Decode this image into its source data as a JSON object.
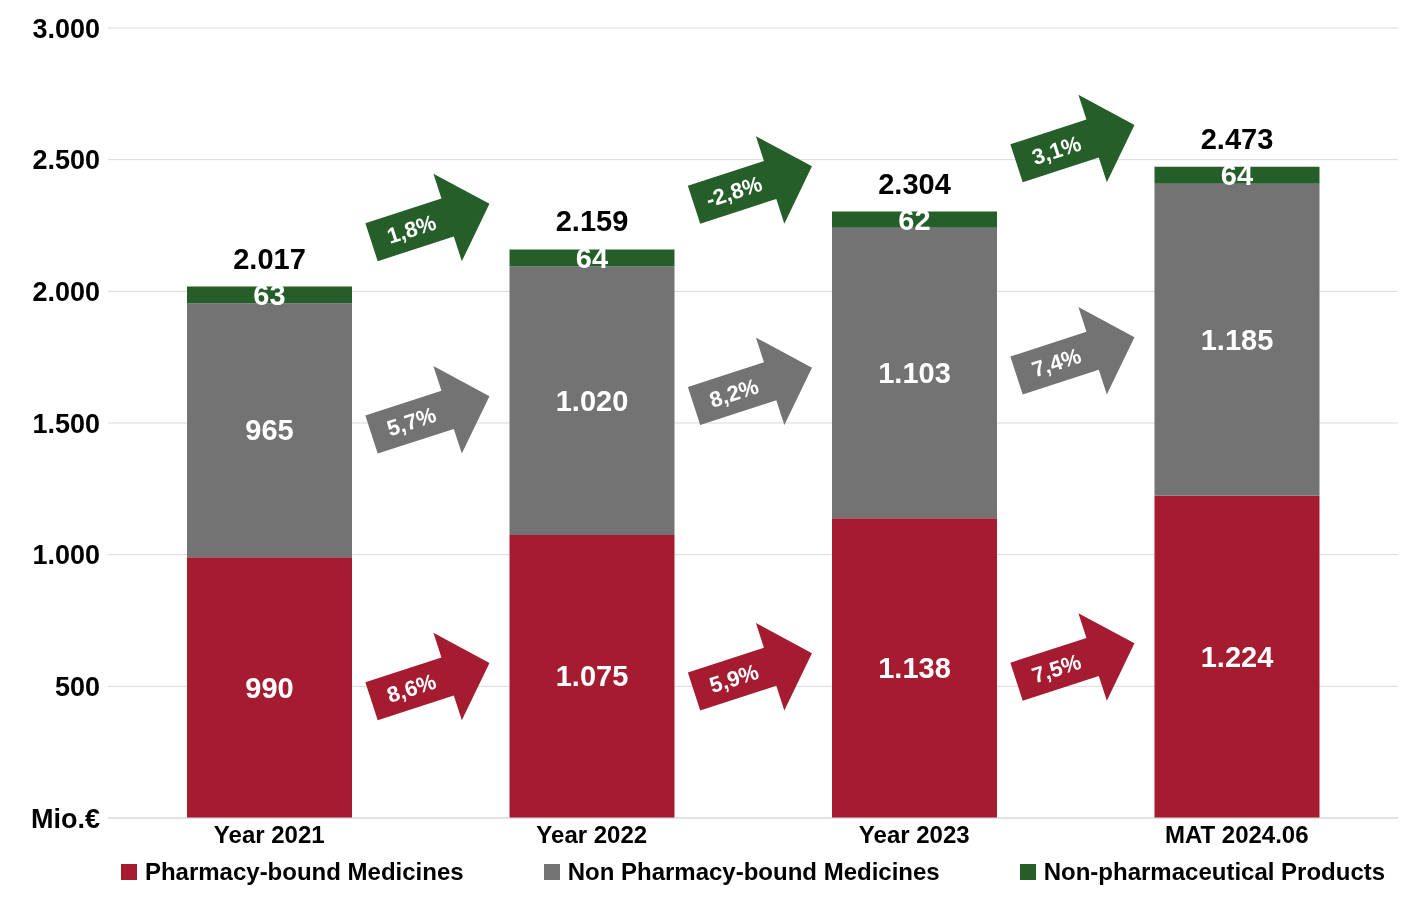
{
  "chart_data": {
    "type": "bar",
    "stacked": true,
    "categories": [
      "Year 2021",
      "Year 2022",
      "Year 2023",
      "MAT 2024.06"
    ],
    "series": [
      {
        "name": "Pharmacy-bound Medicines",
        "color": "#a51c30",
        "values": [
          990,
          1075,
          1138,
          1224
        ],
        "value_labels": [
          "990",
          "1.075",
          "1.138",
          "1.224"
        ]
      },
      {
        "name": "Non Pharmacy-bound Medicines",
        "color": "#737373",
        "values": [
          965,
          1020,
          1103,
          1185
        ],
        "value_labels": [
          "965",
          "1.020",
          "1.103",
          "1.185"
        ]
      },
      {
        "name": "Non-pharmaceutical Products",
        "color": "#255e29",
        "values": [
          63,
          64,
          62,
          64
        ],
        "value_labels": [
          "63",
          "64",
          "62",
          "64"
        ]
      }
    ],
    "totals": [
      "2.017",
      "2.159",
      "2.304",
      "2.473"
    ],
    "ylim": [
      0,
      3000
    ],
    "yticks": [
      {
        "value": 0,
        "label": "Mio.€"
      },
      {
        "value": 500,
        "label": "500"
      },
      {
        "value": 1000,
        "label": "1.000"
      },
      {
        "value": 1500,
        "label": "1.500"
      },
      {
        "value": 2000,
        "label": "2.000"
      },
      {
        "value": 2500,
        "label": "2.500"
      },
      {
        "value": 3000,
        "label": "3.000"
      }
    ],
    "grid": "y",
    "legend": "bottom",
    "annotations": [
      "8,6%",
      "5,7%",
      "1,8%",
      "5,9%",
      "8,2%",
      "-2,8%",
      "7,5%",
      "7,4%",
      "3,1%"
    ]
  }
}
